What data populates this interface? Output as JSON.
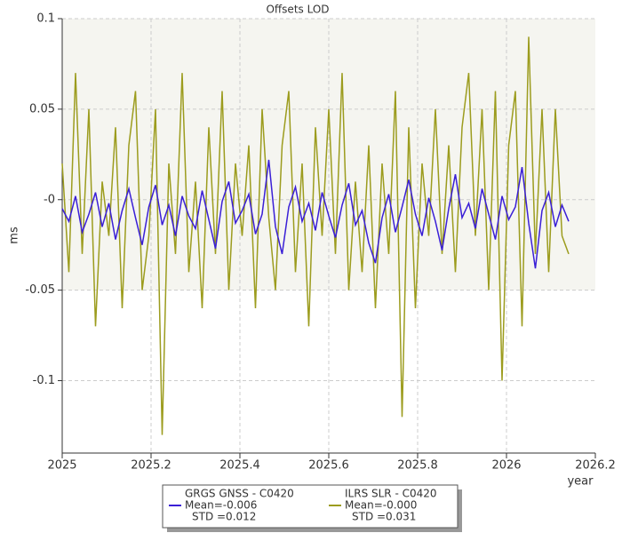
{
  "chart_data": {
    "type": "line",
    "title": "Offsets LOD",
    "y_label": "ms",
    "x_label": "year",
    "xlim": [
      2025,
      2026.2
    ],
    "xticks": [
      2025,
      2025.2,
      2025.4,
      2025.6,
      2025.8,
      2026,
      2026.2
    ],
    "ylim": [
      -0.14,
      0.1
    ],
    "yticks": [
      0.1,
      0.05,
      {
        "value": 0,
        "label": "-0"
      },
      -0.05,
      -0.1
    ],
    "shaded_range": [
      -0.05,
      0.1
    ],
    "grid": true,
    "x": [
      2025,
      2025.015,
      2025.03,
      2025.045,
      2025.06,
      2025.075,
      2025.09,
      2025.105,
      2025.12,
      2025.135,
      2025.15,
      2025.165,
      2025.18,
      2025.195,
      2025.21,
      2025.225,
      2025.24,
      2025.255,
      2025.27,
      2025.285,
      2025.3,
      2025.315,
      2025.33,
      2025.345,
      2025.36,
      2025.375,
      2025.39,
      2025.405,
      2025.42,
      2025.435,
      2025.45,
      2025.465,
      2025.48,
      2025.495,
      2025.51,
      2025.525,
      2025.54,
      2025.555,
      2025.57,
      2025.585,
      2025.6,
      2025.615,
      2025.63,
      2025.645,
      2025.66,
      2025.675,
      2025.69,
      2025.705,
      2025.72,
      2025.735,
      2025.75,
      2025.765,
      2025.78,
      2025.795,
      2025.81,
      2025.825,
      2025.84,
      2025.855,
      2025.87,
      2025.885,
      2025.9,
      2025.915,
      2025.93,
      2025.945,
      2025.96,
      2025.975,
      2025.99,
      2026.005,
      2026.02,
      2026.035,
      2026.05,
      2026.065,
      2026.08,
      2026.095,
      2026.11,
      2026.125,
      2026.14
    ],
    "series": [
      {
        "name": "ILRS SLR - C0420",
        "color": "#9c9c1e",
        "stats": [
          "Mean=-0.000",
          "STD =0.031"
        ],
        "values": [
          0.02,
          -0.04,
          0.07,
          -0.03,
          0.05,
          -0.07,
          0.01,
          -0.02,
          0.04,
          -0.06,
          0.03,
          0.06,
          -0.05,
          -0.02,
          0.05,
          -0.13,
          0.02,
          -0.03,
          0.07,
          -0.04,
          0.01,
          -0.06,
          0.04,
          -0.03,
          0.06,
          -0.05,
          0.02,
          -0.02,
          0.03,
          -0.06,
          0.05,
          -0.01,
          -0.05,
          0.03,
          0.06,
          -0.04,
          0.02,
          -0.07,
          0.04,
          -0.02,
          0.05,
          -0.03,
          0.07,
          -0.05,
          0.01,
          -0.04,
          0.03,
          -0.06,
          0.02,
          -0.03,
          0.06,
          -0.12,
          0.04,
          -0.06,
          0.02,
          -0.02,
          0.05,
          -0.03,
          0.03,
          -0.04,
          0.04,
          0.07,
          -0.02,
          0.05,
          -0.05,
          0.06,
          -0.1,
          0.03,
          0.06,
          -0.07,
          0.09,
          -0.03,
          0.05,
          -0.04,
          0.05,
          -0.02,
          -0.03
        ]
      },
      {
        "name": "GRGS GNSS - C0420",
        "color": "#3a1fd6",
        "stats": [
          "Mean=-0.006",
          "STD =0.012"
        ],
        "values": [
          -0.005,
          -0.012,
          0.002,
          -0.018,
          -0.008,
          0.004,
          -0.015,
          -0.002,
          -0.022,
          -0.006,
          0.006,
          -0.01,
          -0.025,
          -0.004,
          0.008,
          -0.014,
          -0.003,
          -0.02,
          0.002,
          -0.009,
          -0.016,
          0.005,
          -0.011,
          -0.027,
          -0.001,
          0.01,
          -0.013,
          -0.006,
          0.003,
          -0.019,
          -0.008,
          0.022,
          -0.015,
          -0.03,
          -0.004,
          0.007,
          -0.012,
          -0.002,
          -0.017,
          0.004,
          -0.009,
          -0.021,
          -0.003,
          0.009,
          -0.014,
          -0.006,
          -0.024,
          -0.035,
          -0.01,
          0.003,
          -0.018,
          -0.004,
          0.011,
          -0.008,
          -0.02,
          0.001,
          -0.012,
          -0.028,
          -0.005,
          0.014,
          -0.01,
          -0.002,
          -0.016,
          0.006,
          -0.008,
          -0.022,
          0.002,
          -0.011,
          -0.004,
          0.018,
          -0.013,
          -0.038,
          -0.006,
          0.004,
          -0.015,
          -0.003,
          -0.012
        ]
      }
    ]
  }
}
